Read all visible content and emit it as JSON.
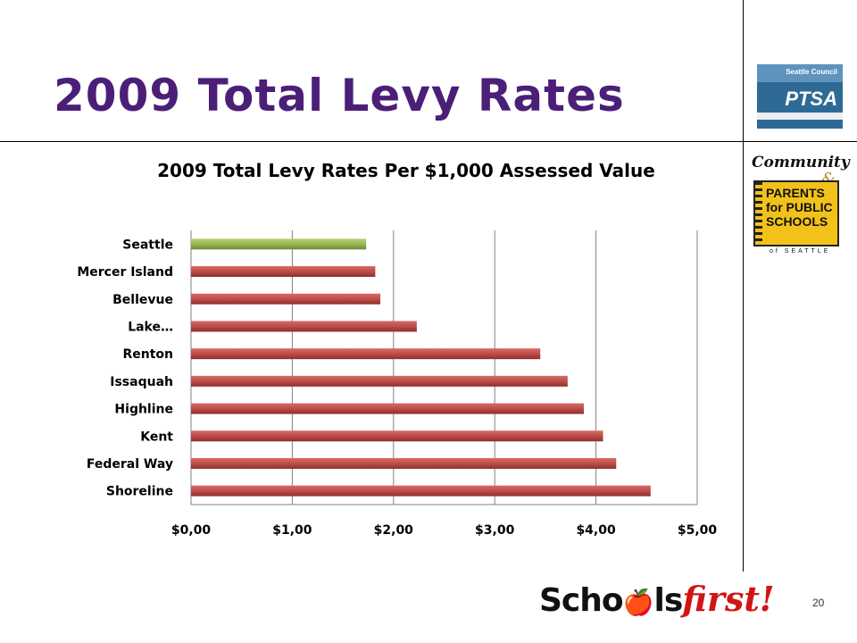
{
  "slide": {
    "title": "2009 Total Levy Rates",
    "page_number": "20"
  },
  "logos": {
    "ptsa": {
      "line1": "Seattle Council",
      "line2": "PTSA"
    },
    "cppps": {
      "community": "Community",
      "amp": "&",
      "book_text": "PARENTS for PUBLIC SCHOOLS",
      "sub": "of SEATTLE"
    },
    "schoolsfirst": {
      "part1": "Scho",
      "apple": "🍎",
      "part2": "ls",
      "part3": "first!"
    }
  },
  "colors": {
    "title": "#4b1f78",
    "bar_default": "#c0504d",
    "bar_highlight": "#9bbb59",
    "gridline": "#808080"
  },
  "chart_data": {
    "type": "bar",
    "orientation": "horizontal",
    "title": "2009 Total Levy Rates Per $1,000 Assessed Value",
    "xlabel": "",
    "ylabel": "",
    "categories": [
      "Seattle",
      "Mercer Island",
      "Bellevue",
      "Lake…",
      "Renton",
      "Issaquah",
      "Highline",
      "Kent",
      "Federal Way",
      "Shoreline"
    ],
    "values": [
      1.73,
      1.82,
      1.87,
      2.23,
      3.45,
      3.72,
      3.88,
      4.07,
      4.2,
      4.54
    ],
    "highlight_category": "Seattle",
    "xlim": [
      0,
      5
    ],
    "xticks": [
      0,
      1,
      2,
      3,
      4,
      5
    ],
    "xtick_labels": [
      "$0,00",
      "$1,00",
      "$2,00",
      "$3,00",
      "$4,00",
      "$5,00"
    ],
    "grid": true,
    "legend": "none"
  }
}
